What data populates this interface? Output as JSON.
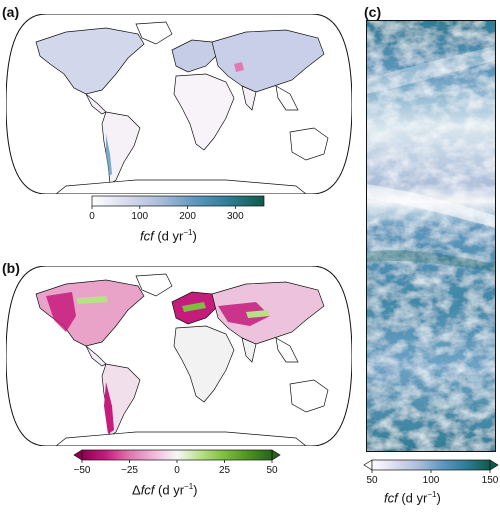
{
  "panels": {
    "a": {
      "label": "(a)"
    },
    "b": {
      "label": "(b)"
    },
    "c": {
      "label": "(c)"
    }
  },
  "colorbar_a": {
    "ticks": [
      "0",
      "100",
      "200",
      "300"
    ],
    "tick_values": [
      0,
      100,
      200,
      300
    ],
    "range": [
      0,
      360
    ],
    "title_var": "fcf",
    "title_unit": " (d yr",
    "title_sup": "−1",
    "title_close": ")",
    "colors": [
      "#ffffff",
      "#d9dbef",
      "#a9bcd9",
      "#5d97bd",
      "#2e7c95",
      "#0f5a4a"
    ]
  },
  "colorbar_b": {
    "ticks": [
      "−50",
      "−25",
      "0",
      "25",
      "50"
    ],
    "tick_values": [
      -50,
      -25,
      0,
      25,
      50
    ],
    "range": [
      -50,
      50
    ],
    "title_prefix": "Δ",
    "title_var": "fcf",
    "title_unit": " (d yr",
    "title_sup": "−1",
    "title_close": ")",
    "colors": [
      "#8e0152",
      "#c51b7d",
      "#de77ae",
      "#f1b6da",
      "#f7f7f7",
      "#b8e186",
      "#7fbc41",
      "#4d9221",
      "#276419"
    ]
  },
  "colorbar_c": {
    "ticks": [
      "50",
      "100",
      "150"
    ],
    "tick_values": [
      50,
      100,
      150
    ],
    "range": [
      50,
      150
    ],
    "title_var": "fcf",
    "title_unit": " (d yr",
    "title_sup": "−1",
    "title_close": ")",
    "colors": [
      "#ffffff",
      "#d9dbef",
      "#a9bcd9",
      "#5d97bd",
      "#2e7c95",
      "#0f5a4a"
    ]
  }
}
